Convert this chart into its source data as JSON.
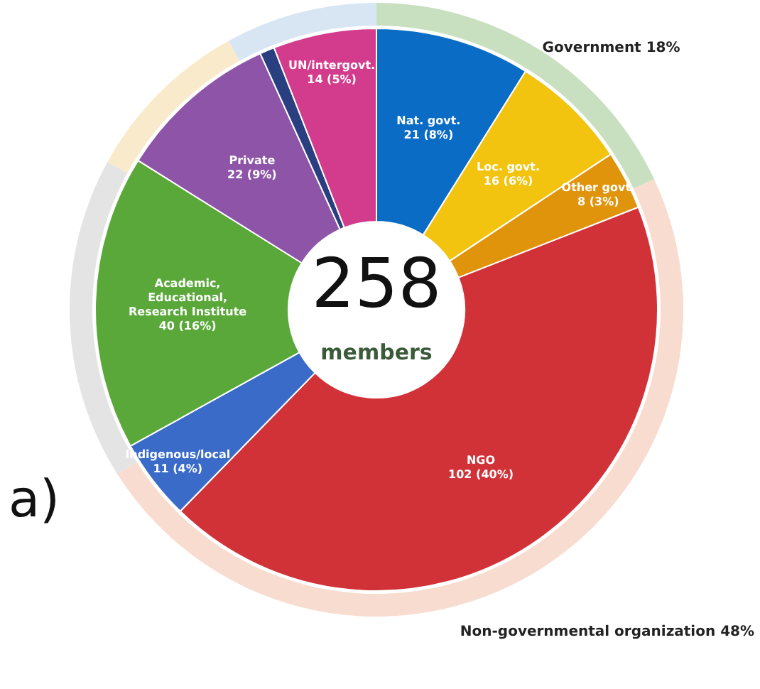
{
  "chart_data": [
    {
      "type": "donut",
      "annotations": [
        "258",
        "members",
        "a)"
      ],
      "categories": [
        "Nat. govt.",
        "Loc. govt.",
        "Other govt.",
        "NGO",
        "Indigenous/local",
        "Academic, Educational, Research Institute",
        "Private",
        null,
        "UN/intergovt."
      ],
      "values": [
        21,
        16,
        8,
        102,
        11,
        40,
        22,
        2,
        14
      ],
      "value_labels": [
        "21 (8%)",
        "16 (6%)",
        "8 (3%)",
        "102 (40%)",
        "11 (4%)",
        "40 (16%)",
        "22 (9%)",
        null,
        "14 (5%)"
      ],
      "colors": [
        "#0a6cc4",
        "#f2c40f",
        "#e0940c",
        "#d03238",
        "#3a6bc8",
        "#5aa83a",
        "#8e54a8",
        "#2a3f80",
        "#d33c8c"
      ]
    },
    {
      "type": "donut",
      "categories": [
        "Government",
        "Non-governmental organization",
        null,
        null,
        null
      ],
      "values": [
        18,
        48,
        17,
        9,
        8
      ],
      "value_labels": [
        "18%",
        "48%",
        null,
        null,
        null
      ],
      "colors": [
        "#c8e0c0",
        "#f8dcd0",
        "#e4e4e4",
        "#faeacc",
        "#d8e6f4"
      ]
    }
  ]
}
